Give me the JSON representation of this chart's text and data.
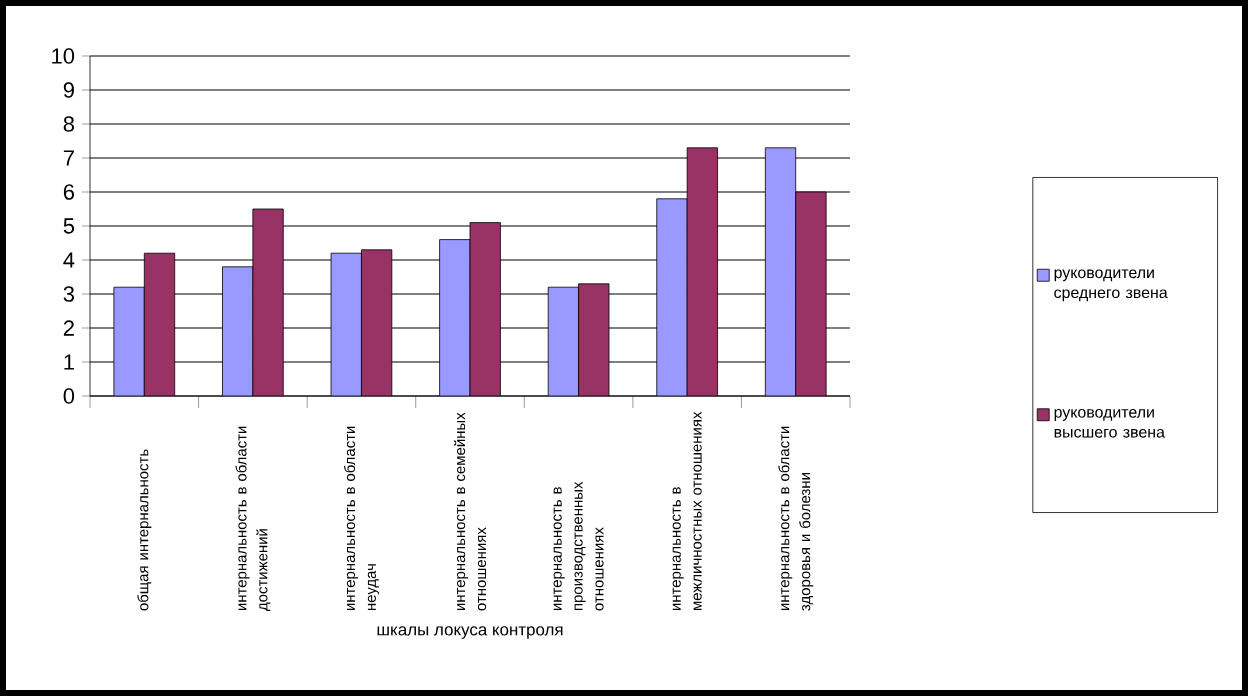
{
  "chart_data": {
    "type": "bar",
    "xlabel": "шкалы локуса контроля",
    "categories": [
      "общая интернальность",
      "интернальность в области достижений",
      "интернальность в области неудач",
      "интернальность в семейных отношениях",
      "интернальность в производственных отношениях",
      "интернальность в межличностных отношениях",
      "интернальность в области здоровья и болезни"
    ],
    "series": [
      {
        "name": "руководители среднего звена",
        "color": "#9999ff",
        "values": [
          3.2,
          3.8,
          4.2,
          4.6,
          3.2,
          5.8,
          7.3
        ]
      },
      {
        "name": "руководители высшего звена",
        "color": "#993366",
        "values": [
          4.2,
          5.5,
          4.3,
          5.1,
          3.3,
          7.3,
          6.0
        ]
      }
    ],
    "ylim": [
      0,
      10
    ],
    "yticks": [
      0,
      1,
      2,
      3,
      4,
      5,
      6,
      7,
      8,
      9,
      10
    ],
    "grid": "y",
    "legend": "right"
  }
}
